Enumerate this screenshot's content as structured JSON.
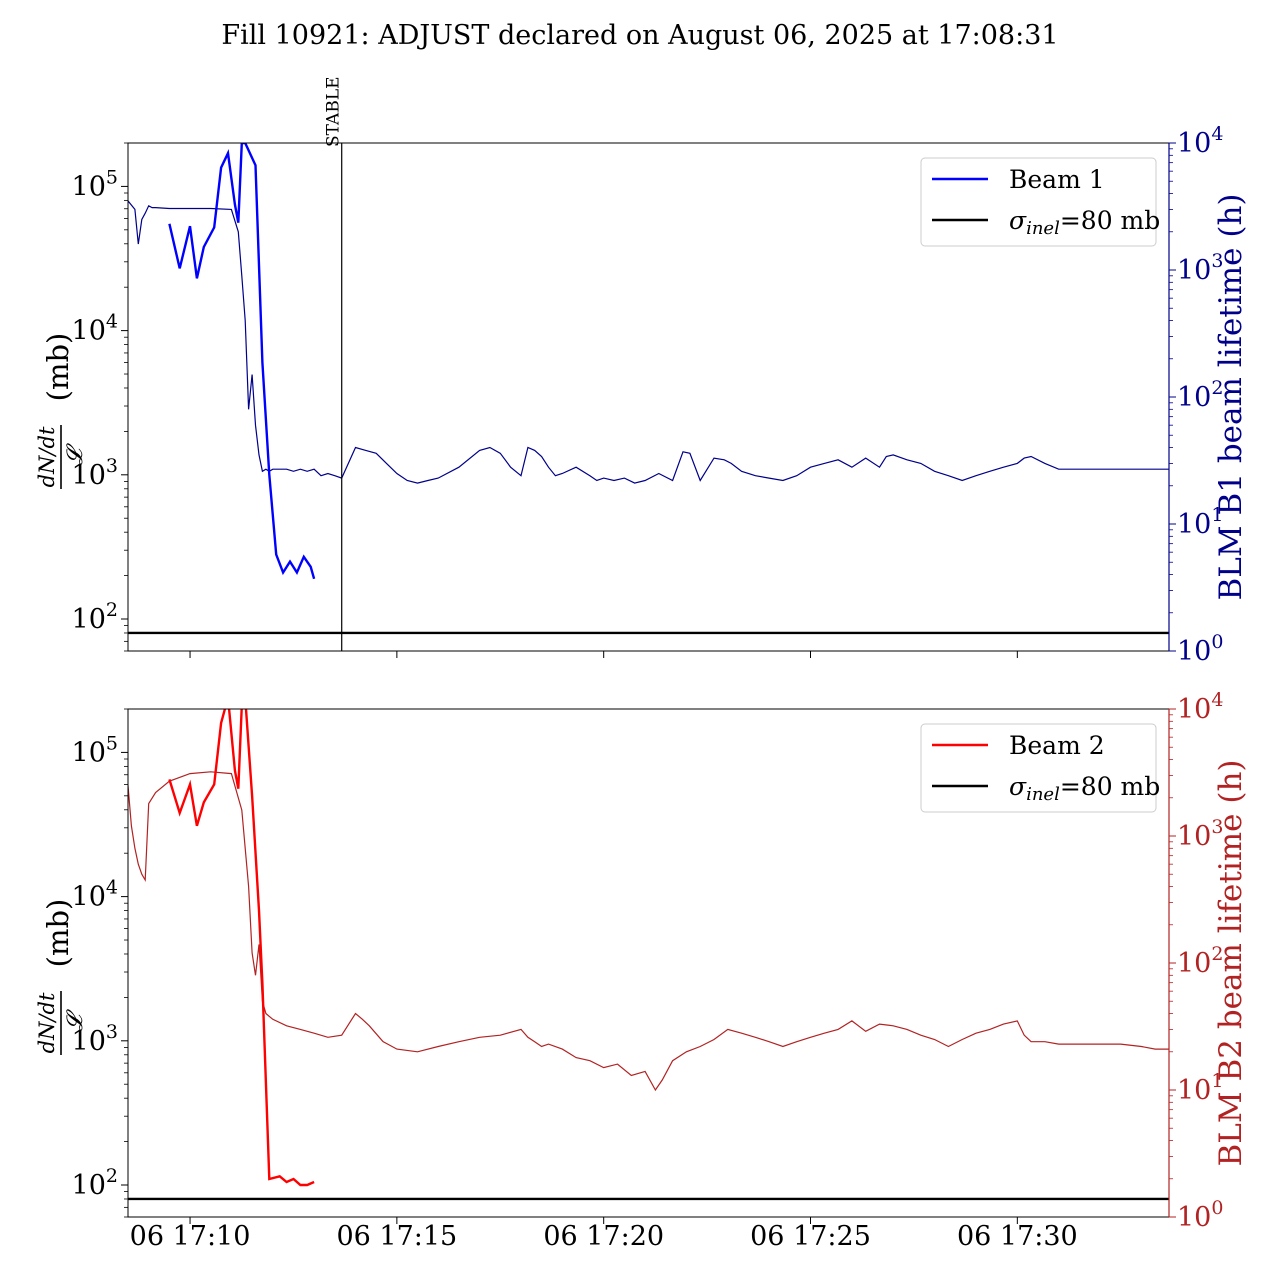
{
  "figure_title": "Fill 10921: ADJUST declared on August 06, 2025 at 17:08:31",
  "chart_data": [
    {
      "type": "line",
      "panel": "top",
      "ylabel_expr": "dN/dt",
      "ylabel_denominator": "𝓛",
      "ylabel_unit": "(mb)",
      "ylabel_right": "BLM B1 beam lifetime (h)",
      "yscale": "log",
      "ylim": [
        60,
        200000
      ],
      "yticks_left": [
        {
          "base": "10",
          "exp": "2",
          "value": 100
        },
        {
          "base": "10",
          "exp": "3",
          "value": 1000
        },
        {
          "base": "10",
          "exp": "4",
          "value": 10000
        },
        {
          "base": "10",
          "exp": "5",
          "value": 100000
        }
      ],
      "yscale_right": "log",
      "ylim_right": [
        1,
        10000
      ],
      "yticks_right": [
        {
          "base": "10",
          "exp": "0",
          "value": 1
        },
        {
          "base": "10",
          "exp": "1",
          "value": 10
        },
        {
          "base": "10",
          "exp": "2",
          "value": 100
        },
        {
          "base": "10",
          "exp": "3",
          "value": 1000
        },
        {
          "base": "10",
          "exp": "4",
          "value": 10000
        }
      ],
      "xlim": [
        "17:08:30",
        "17:33:40"
      ],
      "legend": {
        "placement": "top-right",
        "entries": [
          {
            "label": "Beam 1",
            "color": "#0000ff"
          },
          {
            "label_sym": "σ",
            "label_sub": "inel",
            "label_rest": "=80 mb",
            "color": "#000000"
          }
        ]
      },
      "annotation": {
        "label": "STABLE",
        "x": "17:13:40"
      },
      "hline": {
        "y": 80,
        "color": "#000000"
      },
      "series": [
        {
          "name": "Beam 1",
          "axis": "left",
          "color": "#0000ff",
          "x": [
            "17:09:30",
            "17:09:45",
            "17:10:00",
            "17:10:10",
            "17:10:20",
            "17:10:35",
            "17:10:45",
            "17:10:55",
            "17:11:05",
            "17:11:10",
            "17:11:15",
            "17:11:20",
            "17:11:35",
            "17:11:45",
            "17:11:55",
            "17:12:05",
            "17:12:15",
            "17:12:25",
            "17:12:35",
            "17:12:45",
            "17:12:55",
            "17:13:00"
          ],
          "y": [
            55000,
            27000,
            53000,
            23000,
            38000,
            52000,
            135000,
            170000,
            75000,
            56000,
            200000,
            200000,
            140000,
            6000,
            1000,
            280,
            210,
            250,
            210,
            270,
            230,
            190
          ]
        },
        {
          "name": "",
          "axis": "right",
          "color": "#00008b",
          "x": [
            "17:08:30",
            "17:08:40",
            "17:08:45",
            "17:08:50",
            "17:08:55",
            "17:09:00",
            "17:09:05",
            "17:09:10",
            "17:09:30",
            "17:10:00",
            "17:10:30",
            "17:11:00",
            "17:11:10",
            "17:11:15",
            "17:11:20",
            "17:11:25",
            "17:11:30",
            "17:11:35",
            "17:11:40",
            "17:11:45",
            "17:11:50",
            "17:11:55",
            "17:12:00",
            "17:12:10",
            "17:12:20",
            "17:12:30",
            "17:12:40",
            "17:12:50",
            "17:13:00",
            "17:13:10",
            "17:13:20",
            "17:13:30",
            "17:13:40",
            "17:14:00",
            "17:14:15",
            "17:14:30",
            "17:14:45",
            "17:15:00",
            "17:15:15",
            "17:15:30",
            "17:15:45",
            "17:16:00",
            "17:16:30",
            "17:17:00",
            "17:17:15",
            "17:17:30",
            "17:17:45",
            "17:18:00",
            "17:18:10",
            "17:18:20",
            "17:18:30",
            "17:18:40",
            "17:18:50",
            "17:19:00",
            "17:19:20",
            "17:19:40",
            "17:19:50",
            "17:20:00",
            "17:20:15",
            "17:20:30",
            "17:20:45",
            "17:21:00",
            "17:21:20",
            "17:21:40",
            "17:21:55",
            "17:22:05",
            "17:22:20",
            "17:22:40",
            "17:22:55",
            "17:23:05",
            "17:23:20",
            "17:23:40",
            "17:24:00",
            "17:24:20",
            "17:24:40",
            "17:25:00",
            "17:25:20",
            "17:25:40",
            "17:26:00",
            "17:26:20",
            "17:26:40",
            "17:26:50",
            "17:27:00",
            "17:27:20",
            "17:27:40",
            "17:28:00",
            "17:28:20",
            "17:28:40",
            "17:29:00",
            "17:29:20",
            "17:29:40",
            "17:30:00",
            "17:30:10",
            "17:30:20",
            "17:30:40",
            "17:31:00",
            "17:31:30",
            "17:32:00",
            "17:32:30",
            "17:33:00",
            "17:33:20",
            "17:33:40"
          ],
          "y": [
            3500,
            3000,
            1600,
            2500,
            2800,
            3200,
            3100,
            3100,
            3050,
            3050,
            3050,
            3000,
            2000,
            900,
            400,
            80,
            150,
            60,
            35,
            26,
            27,
            26,
            27,
            27,
            27,
            26,
            27,
            26,
            27,
            24,
            25,
            24,
            23,
            40,
            38,
            36,
            30,
            25,
            22,
            21,
            22,
            23,
            28,
            38,
            40,
            36,
            28,
            24,
            40,
            38,
            34,
            28,
            24,
            25,
            28,
            24,
            22,
            23,
            22,
            23,
            21,
            22,
            25,
            22,
            37,
            36,
            22,
            33,
            32,
            30,
            26,
            24,
            23,
            22,
            24,
            28,
            30,
            32,
            28,
            33,
            28,
            34,
            35,
            32,
            30,
            26,
            24,
            22,
            24,
            26,
            28,
            30,
            33,
            34,
            30,
            27,
            27,
            27,
            27,
            27,
            27,
            27
          ]
        }
      ]
    },
    {
      "type": "line",
      "panel": "bottom",
      "ylabel_expr": "dN/dt",
      "ylabel_denominator": "𝓛",
      "ylabel_unit": "(mb)",
      "ylabel_right": "BLM B2 beam lifetime (h)",
      "yscale": "log",
      "ylim": [
        60,
        200000
      ],
      "yticks_left": [
        {
          "base": "10",
          "exp": "2",
          "value": 100
        },
        {
          "base": "10",
          "exp": "3",
          "value": 1000
        },
        {
          "base": "10",
          "exp": "4",
          "value": 10000
        },
        {
          "base": "10",
          "exp": "5",
          "value": 100000
        }
      ],
      "yscale_right": "log",
      "ylim_right": [
        1,
        10000
      ],
      "yticks_right": [
        {
          "base": "10",
          "exp": "0",
          "value": 1
        },
        {
          "base": "10",
          "exp": "1",
          "value": 10
        },
        {
          "base": "10",
          "exp": "2",
          "value": 100
        },
        {
          "base": "10",
          "exp": "3",
          "value": 1000
        },
        {
          "base": "10",
          "exp": "4",
          "value": 10000
        }
      ],
      "xlim": [
        "17:08:30",
        "17:33:40"
      ],
      "xticks": [
        {
          "label": "06 17:10",
          "value": "17:10:00"
        },
        {
          "label": "06 17:15",
          "value": "17:15:00"
        },
        {
          "label": "06 17:20",
          "value": "17:20:00"
        },
        {
          "label": "06 17:25",
          "value": "17:25:00"
        },
        {
          "label": "06 17:30",
          "value": "17:30:00"
        }
      ],
      "legend": {
        "placement": "top-right",
        "entries": [
          {
            "label": "Beam 2",
            "color": "#ff0000"
          },
          {
            "label_sym": "σ",
            "label_sub": "inel",
            "label_rest": "=80 mb",
            "color": "#000000"
          }
        ]
      },
      "hline": {
        "y": 80,
        "color": "#000000"
      },
      "series": [
        {
          "name": "Beam 2",
          "axis": "left",
          "color": "#ff0000",
          "x": [
            "17:09:30",
            "17:09:45",
            "17:10:00",
            "17:10:10",
            "17:10:20",
            "17:10:35",
            "17:10:45",
            "17:10:55",
            "17:11:05",
            "17:11:10",
            "17:11:15",
            "17:11:20",
            "17:11:30",
            "17:11:40",
            "17:11:45",
            "17:11:55",
            "17:12:10",
            "17:12:20",
            "17:12:30",
            "17:12:40",
            "17:12:50",
            "17:13:00"
          ],
          "y": [
            65000,
            38000,
            60000,
            31000,
            45000,
            60000,
            160000,
            240000,
            75000,
            56000,
            210000,
            240000,
            50000,
            8000,
            2500,
            110,
            115,
            105,
            110,
            100,
            100,
            105
          ]
        },
        {
          "name": "",
          "axis": "right",
          "color": "#b22222",
          "x": [
            "17:08:30",
            "17:08:35",
            "17:08:40",
            "17:08:45",
            "17:08:50",
            "17:08:55",
            "17:09:00",
            "17:09:10",
            "17:09:30",
            "17:10:00",
            "17:10:30",
            "17:11:00",
            "17:11:15",
            "17:11:25",
            "17:11:30",
            "17:11:35",
            "17:11:40",
            "17:11:45",
            "17:11:50",
            "17:11:55",
            "17:12:00",
            "17:12:20",
            "17:12:40",
            "17:13:00",
            "17:13:20",
            "17:13:40",
            "17:14:00",
            "17:14:10",
            "17:14:20",
            "17:14:40",
            "17:15:00",
            "17:15:30",
            "17:16:00",
            "17:16:30",
            "17:17:00",
            "17:17:30",
            "17:18:00",
            "17:18:10",
            "17:18:20",
            "17:18:30",
            "17:18:40",
            "17:19:00",
            "17:19:20",
            "17:19:40",
            "17:20:00",
            "17:20:20",
            "17:20:40",
            "17:21:00",
            "17:21:15",
            "17:21:25",
            "17:21:40",
            "17:22:00",
            "17:22:20",
            "17:22:40",
            "17:23:00",
            "17:23:20",
            "17:23:40",
            "17:24:00",
            "17:24:20",
            "17:24:40",
            "17:25:00",
            "17:25:20",
            "17:25:40",
            "17:26:00",
            "17:26:20",
            "17:26:40",
            "17:27:00",
            "17:27:20",
            "17:27:40",
            "17:28:00",
            "17:28:20",
            "17:28:40",
            "17:29:00",
            "17:29:20",
            "17:29:40",
            "17:30:00",
            "17:30:10",
            "17:30:20",
            "17:30:40",
            "17:31:00",
            "17:31:30",
            "17:32:00",
            "17:32:30",
            "17:33:00",
            "17:33:20",
            "17:33:40"
          ],
          "y": [
            2500,
            1200,
            800,
            600,
            500,
            450,
            1800,
            2200,
            2700,
            3100,
            3200,
            3100,
            1600,
            400,
            120,
            80,
            140,
            50,
            40,
            38,
            36,
            32,
            30,
            28,
            26,
            27,
            40,
            36,
            32,
            24,
            21,
            20,
            22,
            24,
            26,
            27,
            30,
            26,
            24,
            22,
            23,
            21,
            18,
            17,
            15,
            16,
            13,
            14,
            10,
            12,
            17,
            20,
            22,
            25,
            30,
            28,
            26,
            24,
            22,
            24,
            26,
            28,
            30,
            35,
            29,
            33,
            32,
            30,
            27,
            25,
            22,
            25,
            28,
            30,
            33,
            35,
            27,
            24,
            24,
            23,
            23,
            23,
            23,
            22,
            21,
            21
          ]
        }
      ]
    }
  ]
}
